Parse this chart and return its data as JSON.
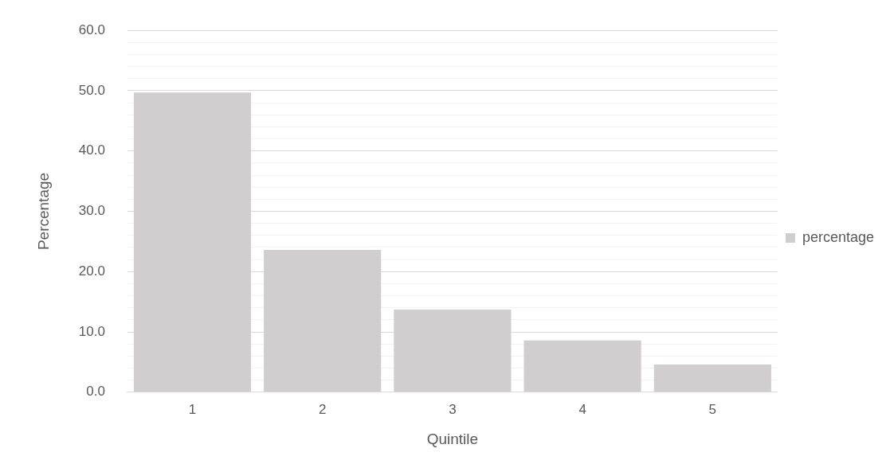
{
  "chart_data": {
    "type": "bar",
    "xlabel": "Quintile",
    "ylabel": "Percentage",
    "categories": [
      "1",
      "2",
      "3",
      "4",
      "5"
    ],
    "series": [
      {
        "name": "percentage",
        "color": "#d0cecf",
        "values": [
          49.7,
          23.6,
          13.7,
          8.6,
          4.6
        ]
      }
    ],
    "ylim": [
      0,
      60
    ],
    "yticks": [
      {
        "value": 0,
        "label": "0.0"
      },
      {
        "value": 2,
        "label": null
      },
      {
        "value": 4,
        "label": null
      },
      {
        "value": 6,
        "label": null
      },
      {
        "value": 8,
        "label": null
      },
      {
        "value": 10,
        "label": "10.0"
      },
      {
        "value": 12,
        "label": null
      },
      {
        "value": 14,
        "label": null
      },
      {
        "value": 16,
        "label": null
      },
      {
        "value": 18,
        "label": null
      },
      {
        "value": 20,
        "label": "20.0"
      },
      {
        "value": 22,
        "label": null
      },
      {
        "value": 24,
        "label": null
      },
      {
        "value": 26,
        "label": null
      },
      {
        "value": 28,
        "label": null
      },
      {
        "value": 30,
        "label": "30.0"
      },
      {
        "value": 32,
        "label": null
      },
      {
        "value": 34,
        "label": null
      },
      {
        "value": 36,
        "label": null
      },
      {
        "value": 38,
        "label": null
      },
      {
        "value": 40,
        "label": "40.0"
      },
      {
        "value": 42,
        "label": null
      },
      {
        "value": 44,
        "label": null
      },
      {
        "value": 46,
        "label": null
      },
      {
        "value": 48,
        "label": null
      },
      {
        "value": 50,
        "label": "50.0"
      },
      {
        "value": 52,
        "label": null
      },
      {
        "value": 54,
        "label": null
      },
      {
        "value": 56,
        "label": null
      },
      {
        "value": 58,
        "label": null
      },
      {
        "value": 60,
        "label": "60.0"
      }
    ],
    "grid": "y",
    "legend": "right"
  }
}
